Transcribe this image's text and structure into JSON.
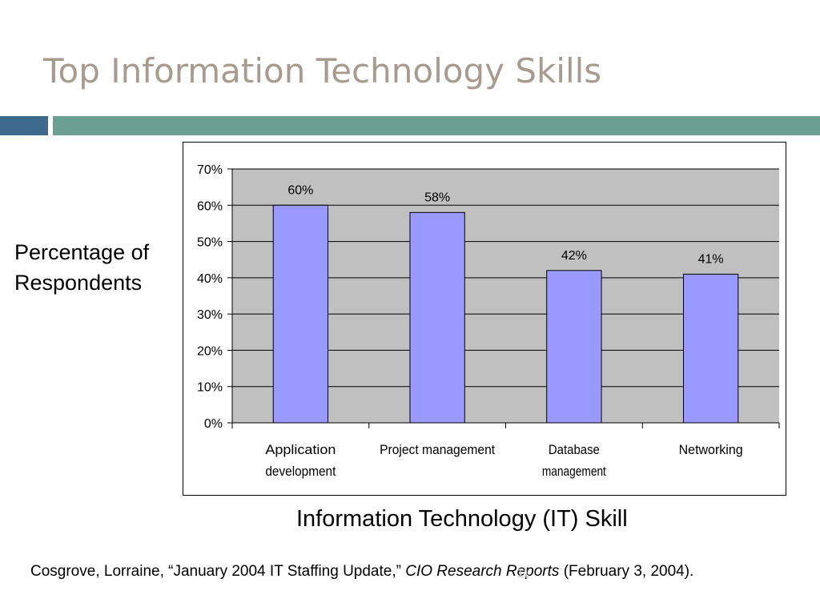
{
  "slide": {
    "title": "Top Information Technology Skills",
    "page_number": "11"
  },
  "colors": {
    "title": "#a99a8e",
    "band_left": "#3c6a8d",
    "band_right": "#6a9f91",
    "plot_bg": "#c0c0c0",
    "bar_fill": "#9999ff",
    "bar_stroke": "#000000"
  },
  "citation": {
    "before": "Cosgrove, Lorraine, “January 2004 IT Staffing Update,” ",
    "journal": "CIO Research Reports",
    "after": " (February 3, 2004)."
  },
  "chart_data": {
    "type": "bar",
    "ylabel_lines": [
      "Percentage of",
      "Respondents"
    ],
    "xlabel": "Information Technology (IT) Skill",
    "categories": [
      [
        "Application",
        "development"
      ],
      [
        "Project management"
      ],
      [
        "Database",
        "management"
      ],
      [
        "Networking"
      ]
    ],
    "values": [
      60,
      58,
      42,
      41
    ],
    "data_labels": [
      "60%",
      "58%",
      "42%",
      "41%"
    ],
    "ylim": [
      0,
      70
    ],
    "yticks": [
      0,
      10,
      20,
      30,
      40,
      50,
      60,
      70
    ],
    "ytick_labels": [
      "0%",
      "10%",
      "20%",
      "30%",
      "40%",
      "50%",
      "60%",
      "70%"
    ],
    "grid": true,
    "legend": false
  }
}
